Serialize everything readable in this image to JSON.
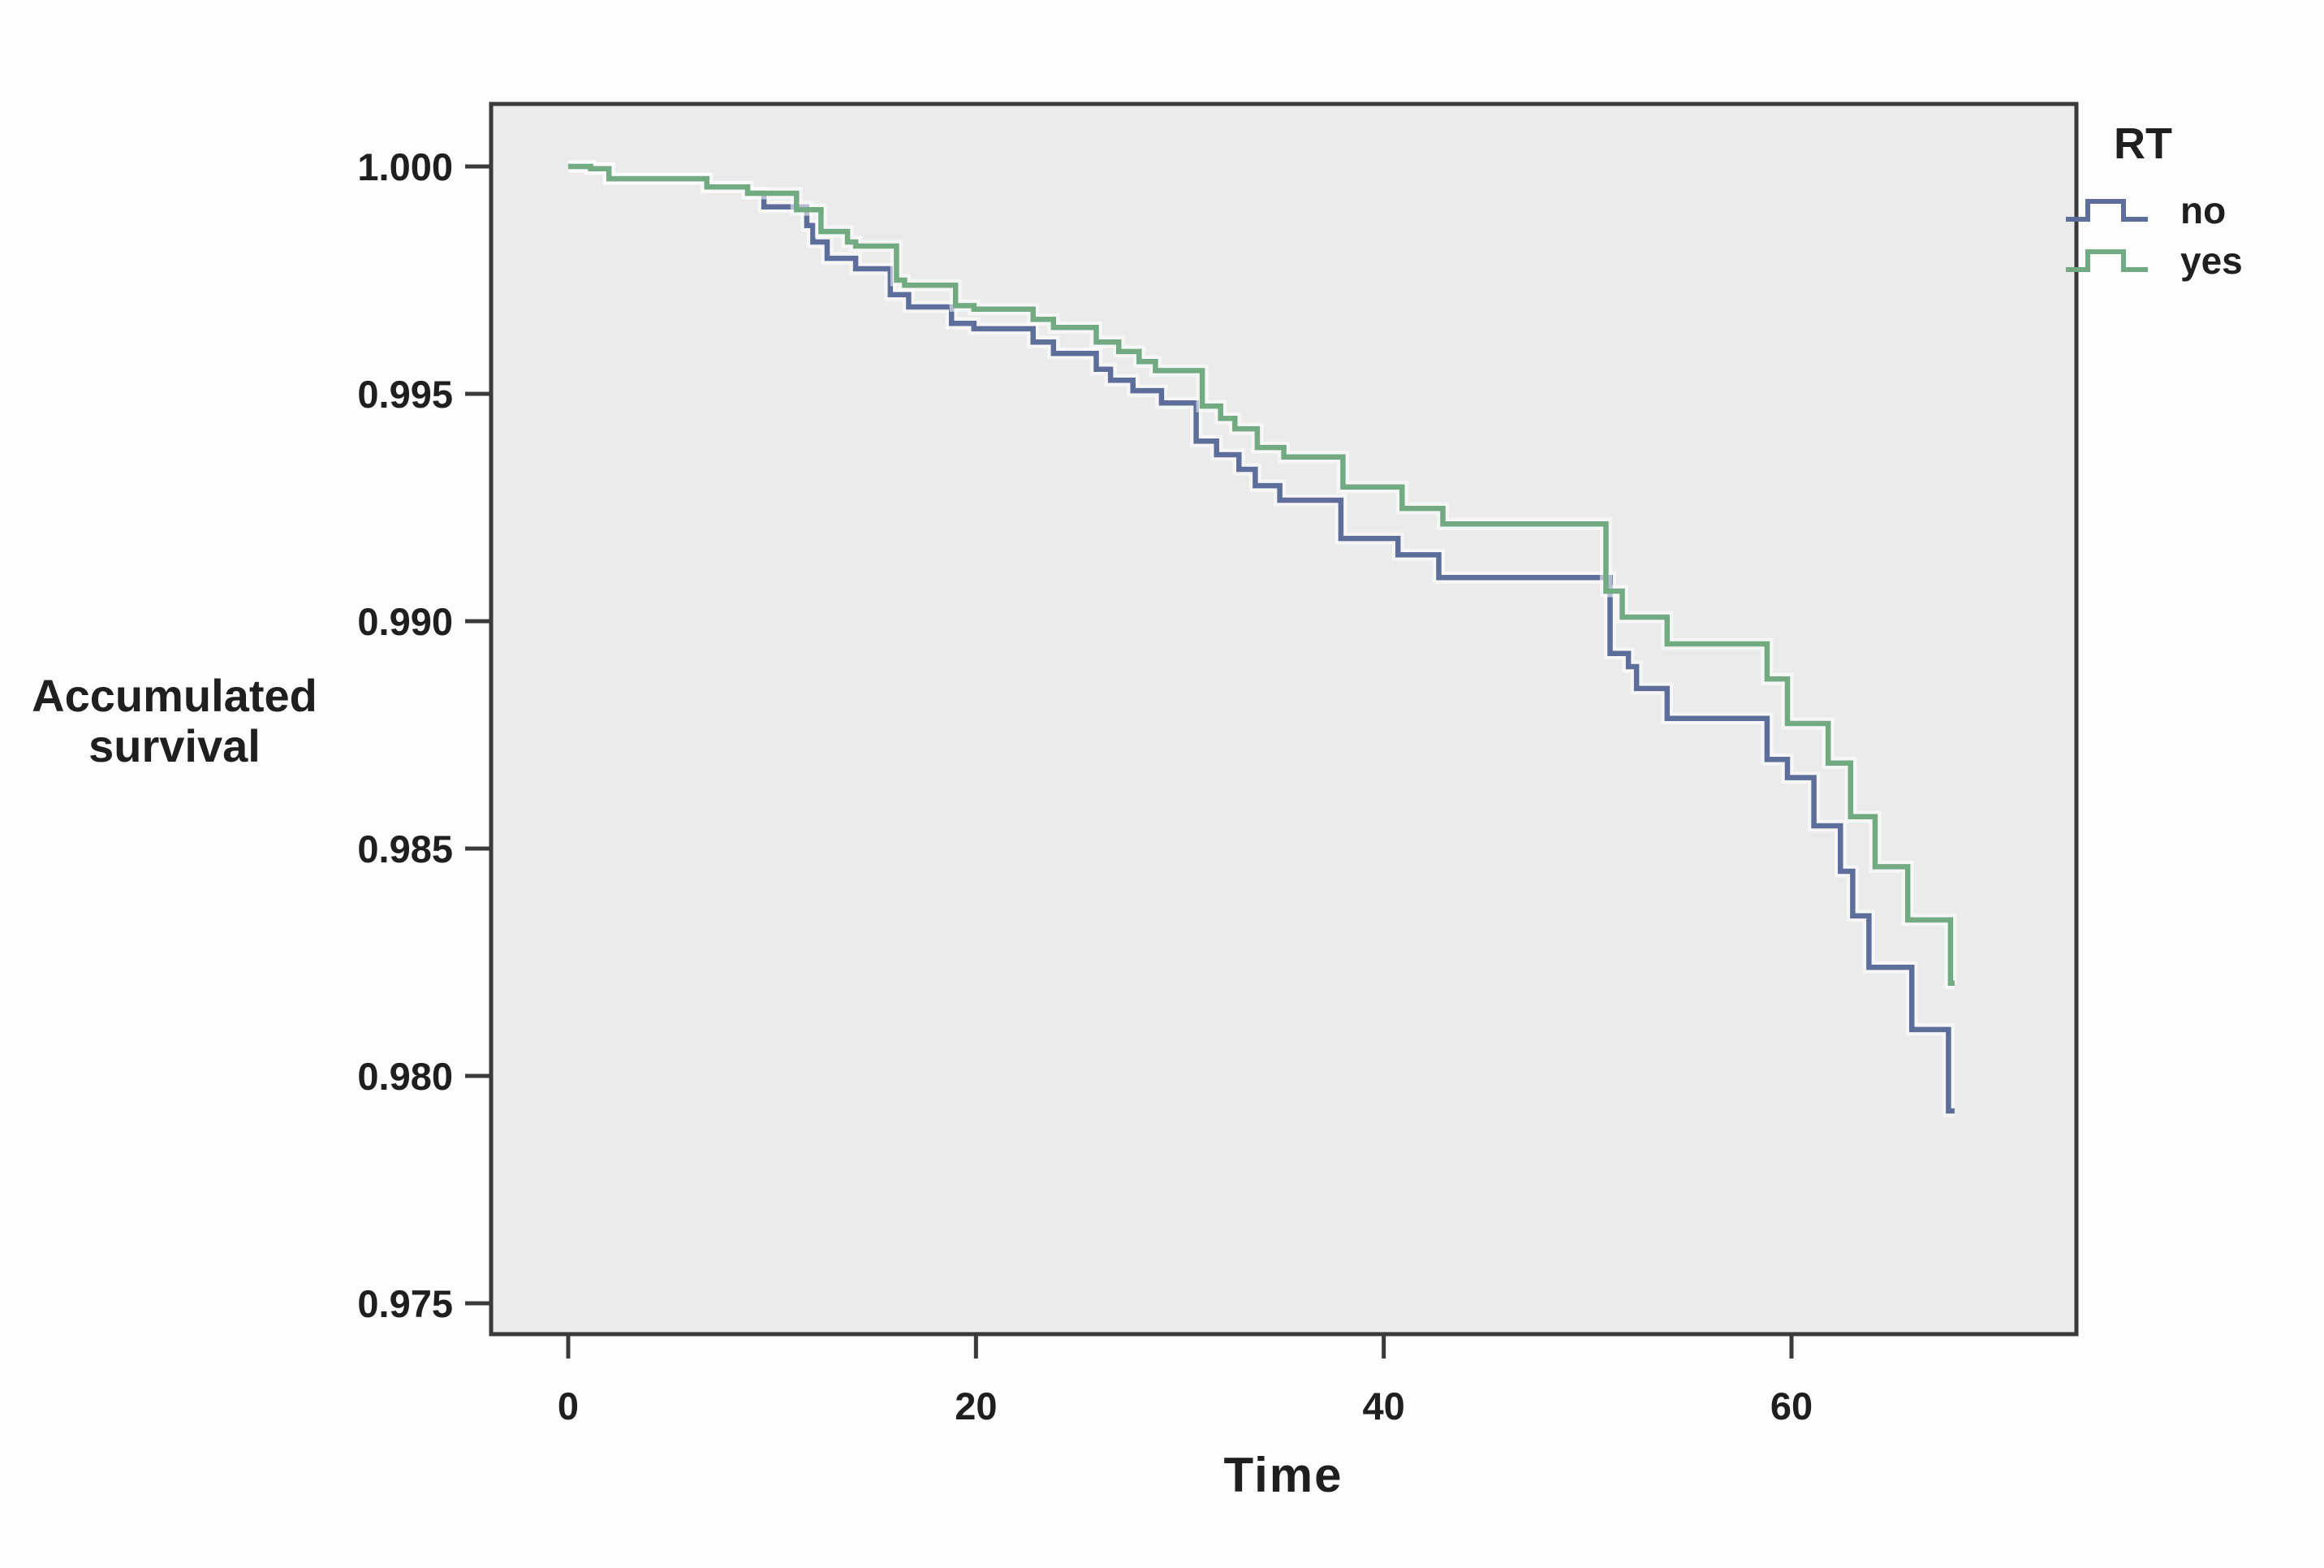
{
  "figure": {
    "y_axis_title_line1": "Accumulated",
    "y_axis_title_line2": "survival",
    "x_axis_title": "Time"
  },
  "legend": {
    "title": "RT",
    "items": [
      {
        "label": "no",
        "color": "#5e6e9b"
      },
      {
        "label": "yes",
        "color": "#72aa82"
      }
    ]
  },
  "colors": {
    "page_background": "#fdfdfd",
    "plot_background": "#ebebeb",
    "frame": "#3a3a3a",
    "text": "#1f1f1f",
    "halo": "#ffffff"
  },
  "chart_data": {
    "type": "line",
    "subtype": "kaplan-meier-step-survival",
    "title": "",
    "xlabel": "Time",
    "ylabel": "Accumulated survival",
    "xlim": [
      -3.8,
      74.0
    ],
    "ylim": [
      0.9743,
      1.0013
    ],
    "xticks": [
      0,
      20,
      40,
      60
    ],
    "ytick_values": [
      1.0,
      0.995,
      0.99,
      0.985,
      0.98,
      0.975
    ],
    "ytick_labels": [
      "1.000",
      "0.995",
      "0.990",
      "0.985",
      "0.980",
      "0.975"
    ],
    "grid": false,
    "legend_position": "outside-top-right",
    "series": [
      {
        "name": "no",
        "color": "#5e6e9b",
        "t": [
          0,
          1.1,
          2.0,
          6.8,
          8.8,
          9.6,
          11.7,
          12.0,
          12.7,
          14.1,
          15.8,
          16.7,
          18.8,
          19.9,
          22.8,
          23.8,
          25.9,
          26.6,
          27.7,
          29.1,
          30.8,
          31.8,
          32.9,
          33.7,
          34.9,
          37.9,
          40.7,
          42.7,
          51.1,
          52.0,
          52.4,
          53.9,
          58.8,
          59.8,
          61.1,
          62.4,
          63.0,
          63.8,
          65.9,
          67.7,
          68.0
        ],
        "survival": [
          1.0,
          0.99995,
          0.99973,
          0.99955,
          0.99941,
          0.99911,
          0.9987,
          0.99834,
          0.99798,
          0.99775,
          0.99718,
          0.99691,
          0.99655,
          0.99643,
          0.99614,
          0.99589,
          0.99554,
          0.9953,
          0.99507,
          0.9948,
          0.99396,
          0.99366,
          0.99334,
          0.99298,
          0.99266,
          0.99182,
          0.99146,
          0.99096,
          0.98929,
          0.989,
          0.98852,
          0.98786,
          0.98696,
          0.98656,
          0.9855,
          0.9845,
          0.98352,
          0.98239,
          0.98102,
          0.97923,
          0.97923
        ]
      },
      {
        "name": "yes",
        "color": "#72aa82",
        "t": [
          0,
          1.1,
          2.0,
          6.8,
          8.8,
          11.2,
          12.4,
          13.7,
          14.1,
          16.1,
          16.5,
          19.0,
          19.9,
          22.8,
          23.8,
          25.9,
          27.0,
          28.0,
          28.8,
          31.1,
          32.0,
          32.7,
          33.8,
          35.1,
          38.0,
          40.9,
          42.9,
          50.9,
          51.7,
          53.9,
          58.8,
          59.8,
          61.8,
          62.9,
          64.1,
          65.7,
          67.8,
          68.0
        ],
        "survival": [
          1.0,
          0.99995,
          0.99973,
          0.99955,
          0.99941,
          0.99905,
          0.99857,
          0.99834,
          0.99825,
          0.9975,
          0.99739,
          0.99694,
          0.99686,
          0.99664,
          0.99646,
          0.99614,
          0.99593,
          0.99571,
          0.99551,
          0.99473,
          0.99446,
          0.99423,
          0.99382,
          0.99361,
          0.99295,
          0.99248,
          0.99214,
          0.99066,
          0.99009,
          0.9895,
          0.98873,
          0.98775,
          0.98688,
          0.9857,
          0.9846,
          0.98343,
          0.98204,
          0.98204
        ]
      }
    ]
  }
}
